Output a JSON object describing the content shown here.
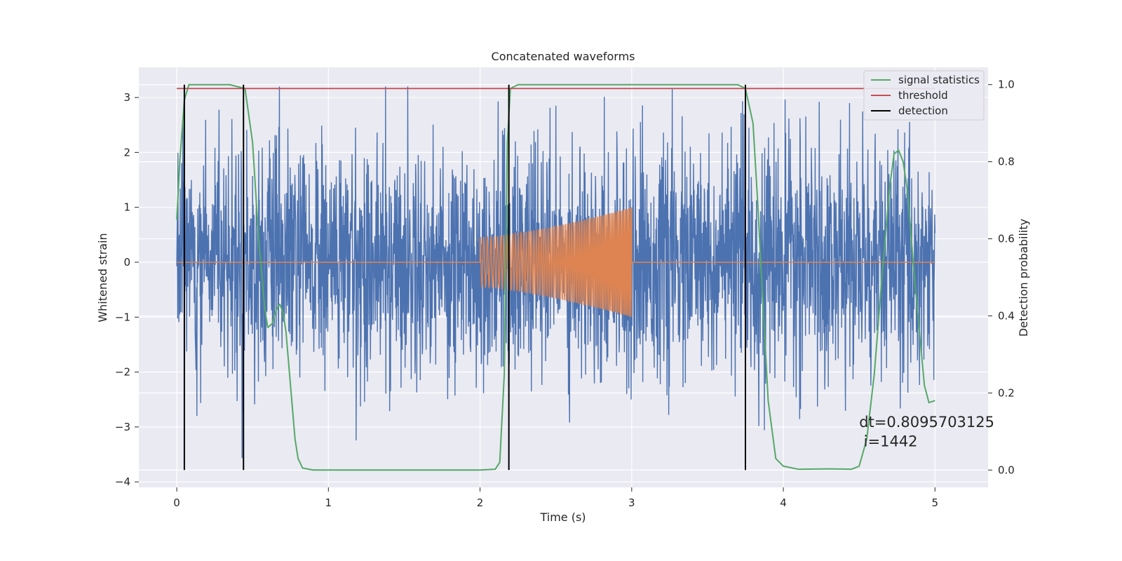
{
  "chart_data": {
    "type": "line",
    "title": "Concatenated waveforms",
    "xlabel": "Time (s)",
    "ylabel": "Whitened strain",
    "y2label": "Detection probability",
    "xlim": [
      -0.25,
      5.35
    ],
    "ylim": [
      -4.1,
      3.55
    ],
    "y2lim": [
      -0.045,
      1.045
    ],
    "x_ticks": [
      0,
      1,
      2,
      3,
      4,
      5
    ],
    "y_ticks": [
      -4,
      -3,
      -2,
      -1,
      0,
      1,
      2,
      3
    ],
    "y2_ticks": [
      0.0,
      0.2,
      0.4,
      0.6,
      0.8,
      1.0
    ],
    "x_tick_labels": [
      "0",
      "1",
      "2",
      "3",
      "4",
      "5"
    ],
    "y_tick_labels": [
      "−4",
      "−3",
      "−2",
      "−1",
      "0",
      "1",
      "2",
      "3"
    ],
    "y2_tick_labels": [
      "0.0",
      "0.2",
      "0.4",
      "0.6",
      "0.8",
      "1.0"
    ],
    "grid": true,
    "legend_position": "top-right",
    "colors": {
      "background": "#eaeaf2",
      "grid": "#ffffff",
      "strain": "#4c72b0",
      "injection": "#dd8452",
      "signal_statistics": "#55a868",
      "threshold": "#c44e52",
      "detection": "#000000"
    },
    "series": [
      {
        "name": "",
        "axis": "left",
        "description_kind": "noise",
        "x_range": [
          0,
          5
        ],
        "approx_amplitude_range": [
          -3.8,
          3.2
        ]
      },
      {
        "name": "",
        "axis": "left",
        "kind": "chirp",
        "x_range": [
          2.0,
          3.0
        ],
        "amplitude_start": 0.45,
        "amplitude_end": 1.0
      },
      {
        "name": "signal statistics",
        "axis": "right",
        "x": [
          0,
          0.02,
          0.05,
          0.08,
          0.12,
          0.2,
          0.35,
          0.45,
          0.5,
          0.54,
          0.58,
          0.6,
          0.63,
          0.66,
          0.68,
          0.7,
          0.72,
          0.75,
          0.78,
          0.8,
          0.83,
          0.9,
          1.5,
          2.0,
          2.1,
          2.13,
          2.16,
          2.18,
          2.2,
          2.25,
          2.4,
          3.0,
          3.7,
          3.75,
          3.8,
          3.83,
          3.87,
          3.9,
          3.95,
          4.0,
          4.1,
          4.3,
          4.45,
          4.5,
          4.55,
          4.6,
          4.65,
          4.7,
          4.73,
          4.76,
          4.79,
          4.82,
          4.86,
          4.9,
          4.93,
          4.96,
          5.0
        ],
        "y": [
          0.65,
          0.8,
          0.96,
          1.0,
          1.0,
          1.0,
          1.0,
          0.99,
          0.85,
          0.6,
          0.42,
          0.37,
          0.38,
          0.42,
          0.43,
          0.41,
          0.36,
          0.22,
          0.08,
          0.03,
          0.005,
          0.0,
          0.0,
          0.0,
          0.002,
          0.02,
          0.25,
          0.85,
          0.99,
          1.0,
          1.0,
          1.0,
          1.0,
          0.99,
          0.9,
          0.7,
          0.4,
          0.18,
          0.03,
          0.01,
          0.002,
          0.003,
          0.002,
          0.01,
          0.08,
          0.25,
          0.5,
          0.73,
          0.82,
          0.83,
          0.8,
          0.72,
          0.52,
          0.35,
          0.22,
          0.175,
          0.18
        ]
      },
      {
        "name": "threshold",
        "axis": "right",
        "x": [
          0,
          5
        ],
        "y": [
          0.99,
          0.99
        ]
      },
      {
        "name": "detection",
        "axis": "right",
        "kind": "vertical_lines",
        "x": [
          0.05,
          0.44,
          2.19,
          3.75
        ],
        "y_range": [
          0.0,
          1.0
        ]
      }
    ],
    "legend": [
      "signal statistics",
      "threshold",
      "detection"
    ],
    "annotations": [
      {
        "text": "dt=0.8095703125",
        "x": 4.5,
        "y": -3.0
      },
      {
        "text": "i=1442",
        "x": 4.53,
        "y": -3.35
      }
    ]
  }
}
